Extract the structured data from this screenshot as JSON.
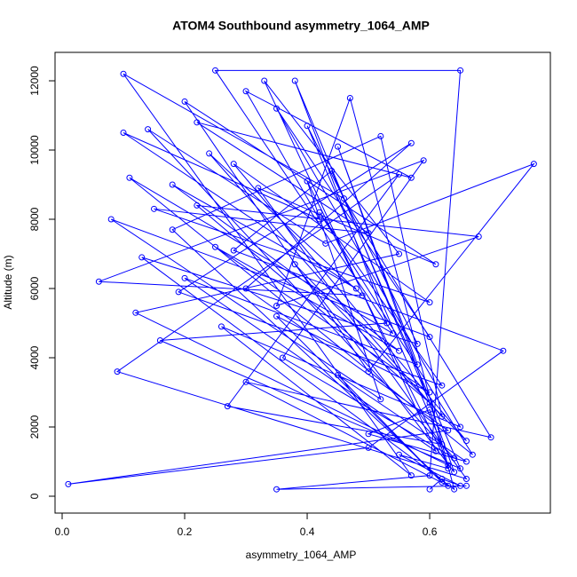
{
  "chart_data": {
    "type": "scatter-line",
    "title": "ATOM4 Southbound asymmetry_1064_AMP",
    "x_label": "asymmetry_1064_AMP",
    "y_label": "Altitude (m)",
    "color": "#0000ff",
    "xlim": [
      -0.0116,
      0.797
    ],
    "ylim": [
      -487,
      12821
    ],
    "xticks": [
      {
        "value": 0,
        "label": "0.0"
      },
      0.2,
      0.4,
      0.6
    ],
    "yticks": [
      0,
      2000,
      4000,
      6000,
      8000,
      10000,
      12000
    ],
    "x": [
      0.6,
      0.62,
      0.65,
      0.55,
      0.63,
      0.6,
      0.5,
      0.66,
      0.45,
      0.62,
      0.35,
      0.6,
      0.25,
      0.55,
      0.18,
      0.48,
      0.1,
      0.42,
      0.3,
      0.57,
      0.22,
      0.5,
      0.15,
      0.6,
      0.28,
      0.66,
      0.38,
      0.64,
      0.45,
      0.58,
      0.2,
      0.61,
      0.33,
      0.55,
      0.12,
      0.63,
      0.4,
      0.52,
      0.08,
      0.6,
      0.35,
      0.65,
      0.26,
      0.57,
      0.1,
      0.46,
      0.7,
      0.3,
      0.63,
      0.18,
      0.52,
      0.62,
      0.24,
      0.49,
      0.06,
      0.59,
      0.36,
      0.64,
      0.14,
      0.43,
      0.77,
      0.5,
      0.2,
      0.61,
      0.32,
      0.66,
      0.09,
      0.55,
      0.27,
      0.62,
      0.4,
      0.58,
      0.13,
      0.64,
      0.47,
      0.35,
      0.68,
      0.22,
      0.6,
      0.38,
      0.53,
      0.16,
      0.65,
      0.44,
      0.28,
      0.72,
      0.5,
      0.01,
      0.63,
      0.3,
      0.57,
      0.19,
      0.62,
      0.42,
      0.67,
      0.11,
      0.54,
      0.25,
      0.65,
      0.6,
      0.35,
      0.66
    ],
    "y": [
      200,
      500,
      300,
      1200,
      800,
      2500,
      1800,
      1000,
      3500,
      400,
      5200,
      3000,
      7200,
      4200,
      9000,
      6000,
      10500,
      8000,
      11700,
      9200,
      10800,
      7600,
      8300,
      5600,
      9600,
      1600,
      6700,
      700,
      10100,
      3800,
      6300,
      1300,
      12000,
      7000,
      5300,
      900,
      9100,
      2800,
      8000,
      4600,
      11200,
      2000,
      4900,
      600,
      12200,
      8600,
      1700,
      3300,
      300,
      7700,
      10400,
      2300,
      9900,
      5800,
      6200,
      9700,
      4000,
      1100,
      10600,
      7300,
      9600,
      3600,
      11400,
      6700,
      8900,
      500,
      3600,
      9300,
      2600,
      1500,
      10700,
      4400,
      6900,
      200,
      11500,
      5500,
      7500,
      8400,
      2700,
      12000,
      5000,
      4500,
      800,
      9400,
      7100,
      4200,
      1400,
      350,
      1900,
      6000,
      10200,
      5900,
      3200,
      8200,
      1200,
      9200,
      4700,
      12300,
      12300,
      600,
      200,
      300
    ]
  }
}
